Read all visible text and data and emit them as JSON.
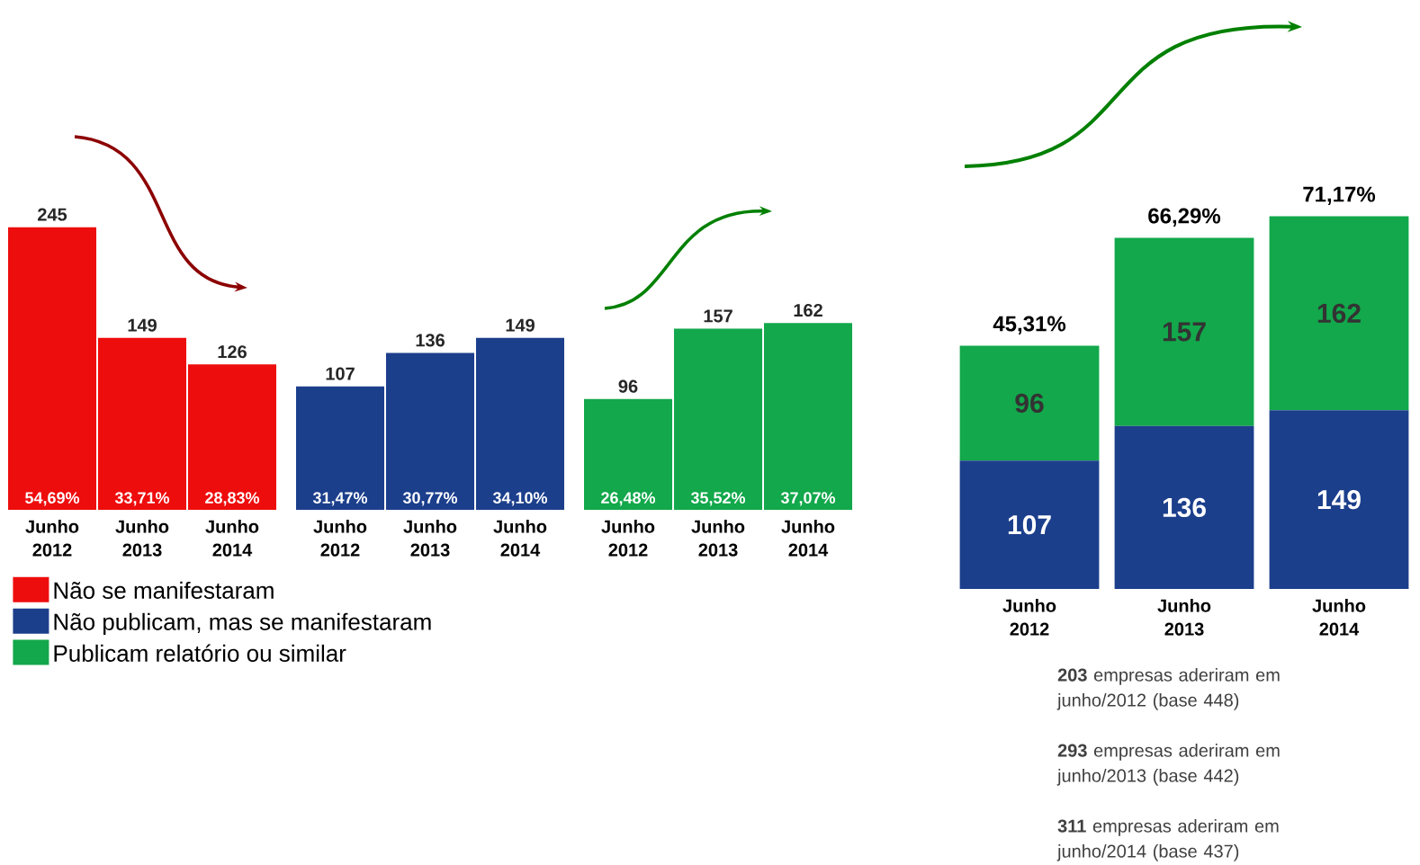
{
  "chart_data": [
    {
      "type": "bar",
      "categories": [
        "Junho 2012",
        "Junho 2013",
        "Junho 2014",
        "Junho 2012",
        "Junho 2013",
        "Junho 2014",
        "Junho 2012",
        "Junho 2013",
        "Junho 2014"
      ],
      "series": [
        {
          "name": "Não se manifestaram",
          "color": "#ee0d0d",
          "values": [
            245,
            149,
            126,
            null,
            null,
            null,
            null,
            null,
            null
          ]
        },
        {
          "name": "Não publicam, mas se manifestaram",
          "color": "#1c3f8c",
          "values": [
            null,
            null,
            null,
            107,
            136,
            149,
            null,
            null,
            null
          ]
        },
        {
          "name": "Publicam relatório ou similar",
          "color": "#12a84b",
          "values": [
            null,
            null,
            null,
            null,
            null,
            null,
            96,
            157,
            162
          ]
        }
      ],
      "data_labels": true,
      "legend": "bottom",
      "annotations": [
        "54,69%",
        "33,71%",
        "28,83%",
        "31,47%",
        "30,77%",
        "34,10%",
        "26,48%",
        "35,52%",
        "37,07%"
      ]
    },
    {
      "type": "bar",
      "stacked": true,
      "categories": [
        "Junho 2012",
        "Junho 2013",
        "Junho 2014"
      ],
      "series": [
        {
          "color": "#1c3f8c",
          "values": [
            107,
            136,
            149
          ]
        },
        {
          "color": "#12a84b",
          "values": [
            96,
            157,
            162
          ]
        }
      ],
      "data_labels": true,
      "annotations": [
        {
          "text": "45,31%",
          "x": "Junho 2012",
          "y": 203
        },
        {
          "text": "66,29%",
          "x": "Junho 2013",
          "y": 293
        },
        {
          "text": "71,17%",
          "x": "Junho 2014",
          "y": 311
        },
        "**203** empresas aderiram em junho/2012 (base 448)",
        "**293** empresas aderiram em junho/2013 (base 442)",
        "**311** empresas aderiram em junho/2014 (base 437)"
      ]
    }
  ]
}
